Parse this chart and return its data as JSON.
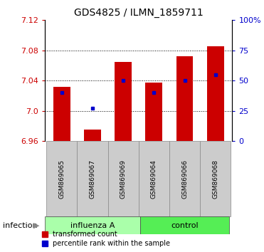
{
  "title": "GDS4825 / ILMN_1859711",
  "samples": [
    "GSM869065",
    "GSM869067",
    "GSM869069",
    "GSM869064",
    "GSM869066",
    "GSM869068"
  ],
  "groups": [
    "influenza A",
    "influenza A",
    "influenza A",
    "control",
    "control",
    "control"
  ],
  "transformed_counts": [
    7.032,
    6.975,
    7.065,
    7.037,
    7.072,
    7.085
  ],
  "percentile_ranks": [
    40,
    27,
    50,
    40,
    50,
    55
  ],
  "y_min": 6.96,
  "y_max": 7.12,
  "y_ticks": [
    6.96,
    7.0,
    7.04,
    7.08,
    7.12
  ],
  "right_y_ticks": [
    0,
    25,
    50,
    75,
    100
  ],
  "right_y_tick_labels": [
    "0",
    "25",
    "50",
    "75",
    "100%"
  ],
  "bar_color": "#cc0000",
  "dot_color": "#0000cc",
  "bar_width": 0.55,
  "bg_color": "#ffffff",
  "left_tick_color": "#cc0000",
  "right_tick_color": "#0000cc",
  "sample_box_color": "#cccccc",
  "group_color_flu": "#aaffaa",
  "group_color_ctrl": "#55ee55",
  "infection_label": "infection"
}
